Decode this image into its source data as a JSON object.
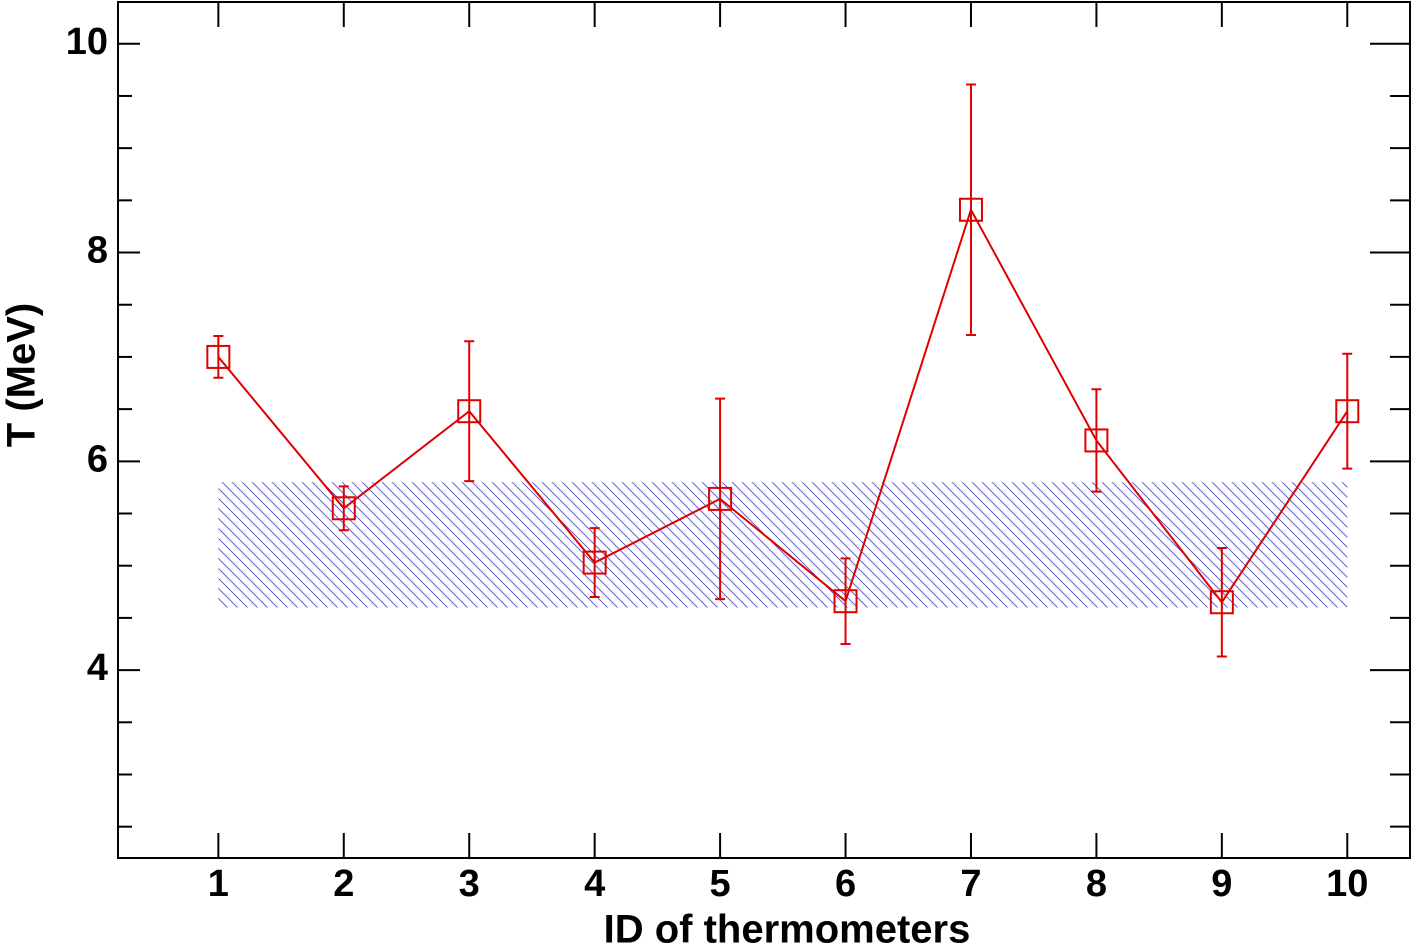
{
  "chart_data": {
    "type": "line",
    "x_label": "ID of thermometers",
    "y_label": "T (MeV)",
    "x": [
      1,
      2,
      3,
      4,
      5,
      6,
      7,
      8,
      9,
      10
    ],
    "series": [
      {
        "color": "#e00000",
        "values": [
          7.0,
          5.55,
          6.48,
          5.03,
          5.64,
          4.66,
          8.41,
          6.2,
          4.65,
          6.48
        ],
        "errors": [
          0.2,
          0.21,
          0.67,
          0.33,
          0.96,
          0.41,
          1.2,
          0.49,
          0.52,
          0.55
        ]
      }
    ],
    "band": {
      "color": "#5050c0",
      "x": [
        1,
        10
      ],
      "y": [
        4.6,
        5.8
      ]
    },
    "xlim": [
      0.2,
      10.5
    ],
    "ylim": [
      2.2,
      10.4
    ],
    "xticks": [
      1,
      2,
      3,
      4,
      5,
      6,
      7,
      8,
      9,
      10
    ],
    "yticks": [
      4,
      6,
      8,
      10
    ],
    "yminor_ticks": [
      2.5,
      3,
      3.5,
      4.5,
      5,
      5.5,
      6.5,
      7,
      7.5,
      8.5,
      9,
      9.5
    ]
  }
}
